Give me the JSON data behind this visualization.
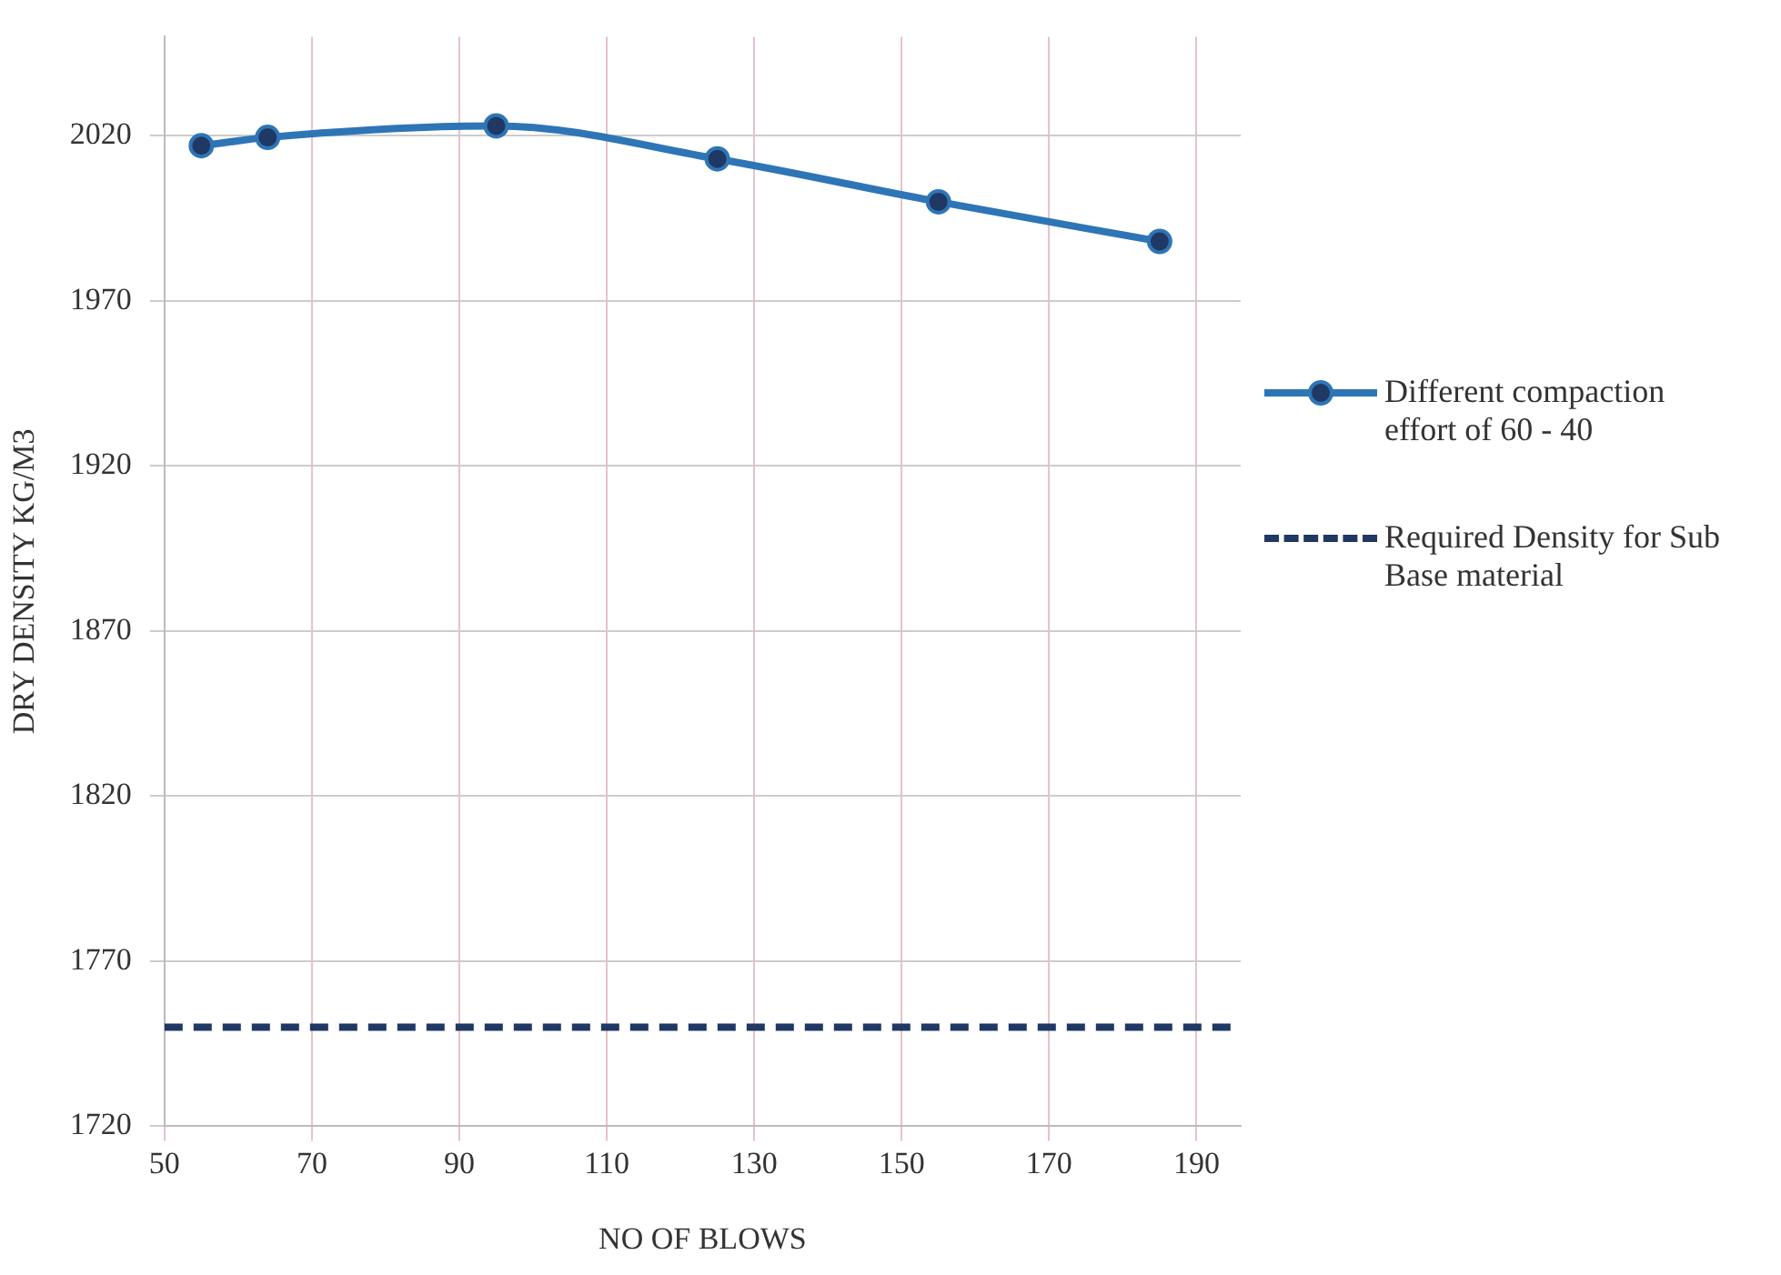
{
  "chart_data": {
    "type": "line",
    "xlabel": "NO OF BLOWS",
    "ylabel": "DRY DENSITY KG/M3",
    "x": [
      55,
      64,
      95,
      125,
      155,
      185
    ],
    "series": [
      {
        "name": "Different compaction effort of 60 - 40",
        "color": "#2e75b6",
        "values": [
          2017,
          2019.5,
          2023,
          2013,
          2000,
          1988
        ],
        "marker": "circle",
        "line_style": "solid"
      },
      {
        "name": "Required Density for Sub Base material",
        "color": "#1f3864",
        "x": [
          50,
          196
        ],
        "values": [
          1750,
          1750
        ],
        "marker": "none",
        "line_style": "dashed"
      }
    ],
    "xlim": [
      50,
      196
    ],
    "xticks": [
      50,
      70,
      90,
      110,
      130,
      150,
      170,
      190
    ],
    "ylim": [
      1720,
      2050
    ],
    "yticks": [
      1720,
      1770,
      1820,
      1870,
      1920,
      1970,
      2020
    ],
    "grid": true,
    "legend": "right"
  }
}
